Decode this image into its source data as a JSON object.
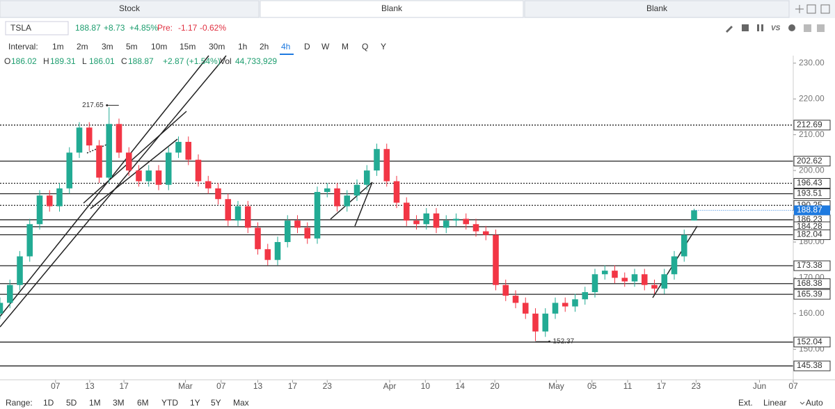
{
  "tabs": [
    "Stock",
    "Blank",
    "Blank"
  ],
  "header": {
    "symbol": "TSLA",
    "change": "+8.73",
    "change_pct": "+4.85%",
    "pre_label": "Pre:",
    "pre_change": "-1.17",
    "pre_pct": "-0.62%",
    "interval_label": "Interval:",
    "intervals": [
      "1m",
      "2m",
      "3m",
      "5m",
      "10m",
      "15m",
      "30m",
      "1h",
      "2h",
      "4h",
      "D",
      "W",
      "M",
      "Q",
      "Y"
    ],
    "active_interval": "4h"
  },
  "ohlc": {
    "o": "O",
    "h": "H",
    "l": "L",
    "c": "C",
    "change": "+2.87 (+1.54%)",
    "vol_label": "Vol",
    "vol": "44,733,929"
  },
  "footer": {
    "range_label": "Range:",
    "ranges": [
      "1D",
      "5D",
      "1M",
      "3M",
      "6M",
      "YTD",
      "1Y",
      "5Y",
      "Max"
    ],
    "ext": "Ext.",
    "scale": "Linear",
    "auto": "Auto"
  },
  "chart_data": {
    "type": "candlestick",
    "up_color": "#22ab94",
    "down_color": "#f23645",
    "ylim": [
      141.5,
      232.1
    ],
    "yticks": [
      {
        "value": 230,
        "label": "230.00"
      },
      {
        "value": 220,
        "label": "220.00"
      },
      {
        "value": 210,
        "label": "210.00"
      },
      {
        "value": 200,
        "label": "200.00"
      },
      {
        "value": 180,
        "label": "180.00"
      },
      {
        "value": 170,
        "label": "170.00"
      },
      {
        "value": 160,
        "label": "160.00"
      },
      {
        "value": 150,
        "label": "150.00"
      }
    ],
    "xlim": [
      0,
      80
    ],
    "xticks": [
      {
        "value": 5.6,
        "label": "07"
      },
      {
        "value": 9.05,
        "label": "13"
      },
      {
        "value": 12.5,
        "label": "17"
      },
      {
        "value": 18.7,
        "label": "Mar"
      },
      {
        "value": 22.3,
        "label": "07"
      },
      {
        "value": 26,
        "label": "13"
      },
      {
        "value": 29.5,
        "label": "17"
      },
      {
        "value": 33,
        "label": "23"
      },
      {
        "value": 39.3,
        "label": "Apr"
      },
      {
        "value": 42.9,
        "label": "10"
      },
      {
        "value": 46.4,
        "label": "14"
      },
      {
        "value": 49.9,
        "label": "20"
      },
      {
        "value": 56.1,
        "label": "May"
      },
      {
        "value": 59.7,
        "label": "05"
      },
      {
        "value": 63.3,
        "label": "11"
      },
      {
        "value": 66.7,
        "label": "17"
      },
      {
        "value": 70.2,
        "label": "23"
      },
      {
        "value": 76.6,
        "label": "Jun"
      },
      {
        "value": 80,
        "label": "07"
      }
    ],
    "levels": [
      {
        "value": 212.69,
        "style": "dotted"
      },
      {
        "value": 202.62,
        "style": "solid"
      },
      {
        "value": 196.43,
        "style": "dotted"
      },
      {
        "value": 193.51,
        "style": "solid"
      },
      {
        "value": 190.25,
        "style": "dotted"
      },
      {
        "value": 186.23,
        "style": "solid"
      },
      {
        "value": 184.28,
        "style": "solid"
      },
      {
        "value": 182.04,
        "style": "solid"
      },
      {
        "value": 173.38,
        "style": "solid"
      },
      {
        "value": 168.38,
        "style": "solid"
      },
      {
        "value": 165.39,
        "style": "solid"
      },
      {
        "value": 152.04,
        "style": "solid"
      },
      {
        "value": 145.38,
        "style": "solid"
      }
    ],
    "high_label_index": 11,
    "low_label_index": 54,
    "candles": [
      [
        160,
        164.5,
        158.5,
        163
      ],
      [
        163,
        169.5,
        161.5,
        168
      ],
      [
        168,
        177.5,
        166.5,
        176
      ],
      [
        176,
        186.5,
        174.5,
        185
      ],
      [
        185,
        194.5,
        183.5,
        193
      ],
      [
        193,
        194.5,
        188.5,
        190
      ],
      [
        190,
        196.5,
        188.5,
        195
      ],
      [
        195,
        206.5,
        193.5,
        205
      ],
      [
        205,
        213.5,
        203.5,
        212
      ],
      [
        212,
        213.5,
        205.5,
        207
      ],
      [
        207,
        208.5,
        196.5,
        198
      ],
      [
        198,
        217.65,
        196.5,
        213
      ],
      [
        213,
        214.5,
        203.5,
        205
      ],
      [
        205,
        206.5,
        198.5,
        200
      ],
      [
        200,
        201.5,
        195.5,
        197
      ],
      [
        197,
        201.5,
        195.5,
        200
      ],
      [
        200,
        201.5,
        194.5,
        196
      ],
      [
        196,
        206.5,
        194.5,
        205
      ],
      [
        205,
        209.5,
        203.5,
        208
      ],
      [
        208,
        209.5,
        201.5,
        203
      ],
      [
        203,
        204.5,
        195.5,
        197
      ],
      [
        197,
        198.5,
        193.5,
        195
      ],
      [
        195,
        196.5,
        190.5,
        192
      ],
      [
        192,
        193.5,
        184.5,
        186
      ],
      [
        186,
        191.5,
        184.5,
        190
      ],
      [
        190,
        191.5,
        182.5,
        184
      ],
      [
        184,
        185.5,
        176.5,
        178
      ],
      [
        178,
        179.5,
        173.5,
        175
      ],
      [
        175,
        181.5,
        173.5,
        180
      ],
      [
        180,
        187.5,
        178.5,
        186
      ],
      [
        186,
        187.5,
        182.5,
        184
      ],
      [
        184,
        185.5,
        179.5,
        181
      ],
      [
        181,
        195.5,
        179.5,
        194
      ],
      [
        194,
        196.5,
        192.5,
        195
      ],
      [
        195,
        196.5,
        188.5,
        190
      ],
      [
        190,
        194.5,
        188.5,
        193
      ],
      [
        193,
        197.5,
        191.5,
        196
      ],
      [
        196,
        201.5,
        194.5,
        200
      ],
      [
        200,
        207.5,
        198.5,
        206
      ],
      [
        206,
        207.5,
        195.5,
        197
      ],
      [
        197,
        198.5,
        189.5,
        191
      ],
      [
        191,
        192.5,
        184.5,
        186
      ],
      [
        186,
        187.5,
        183.5,
        185
      ],
      [
        185,
        189.5,
        183.5,
        188
      ],
      [
        188,
        189.5,
        182.5,
        184
      ],
      [
        184,
        187.5,
        182.5,
        186
      ],
      [
        186,
        188,
        184.5,
        186.5
      ],
      [
        186.5,
        188,
        183.5,
        185
      ],
      [
        185,
        186.5,
        181.5,
        183
      ],
      [
        183,
        184.5,
        180.5,
        182
      ],
      [
        182,
        183.5,
        166.5,
        168
      ],
      [
        168,
        169.5,
        163.5,
        165
      ],
      [
        165,
        166.5,
        161.5,
        163
      ],
      [
        163,
        164.5,
        158.5,
        160
      ],
      [
        160,
        161.5,
        152.37,
        155
      ],
      [
        155,
        161.5,
        153.5,
        160
      ],
      [
        160,
        164.5,
        158.5,
        163
      ],
      [
        163,
        164.5,
        160.5,
        162
      ],
      [
        162,
        165.5,
        160.5,
        164
      ],
      [
        164,
        167.5,
        162.5,
        166
      ],
      [
        166,
        172.5,
        164.5,
        171
      ],
      [
        171,
        173.5,
        169.5,
        172
      ],
      [
        172,
        173.5,
        168.5,
        170
      ],
      [
        170,
        171.5,
        167.5,
        169
      ],
      [
        169,
        172.5,
        167.5,
        171
      ],
      [
        171,
        172.5,
        166.5,
        168
      ],
      [
        168,
        169.5,
        165.5,
        167
      ],
      [
        167,
        172.5,
        165.5,
        171
      ],
      [
        171,
        177.5,
        169.5,
        176
      ],
      [
        176,
        183.5,
        174.5,
        182
      ],
      [
        186.02,
        189.31,
        186.01,
        188.87
      ]
    ]
  }
}
